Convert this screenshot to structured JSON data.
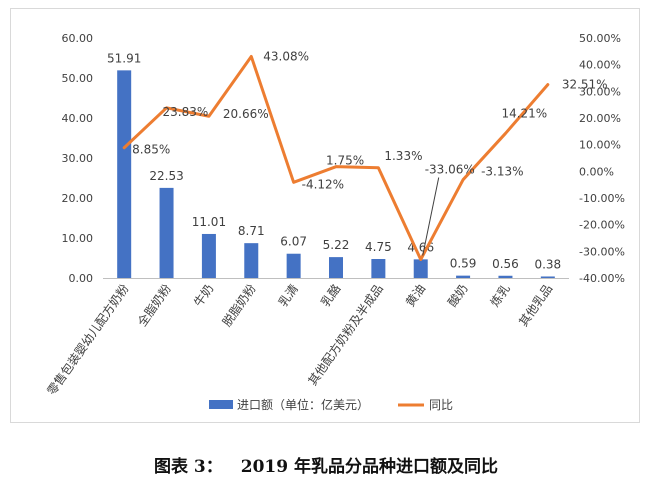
{
  "caption": {
    "label": "图表 3：",
    "text": "2019 年乳品分品种进口额及同比"
  },
  "colors": {
    "bar": "#4472c4",
    "line": "#ed7d31",
    "text": "#404040",
    "axis": "#bfbfbf"
  },
  "chart_data": {
    "type": "bar",
    "categories": [
      "零售包装婴幼儿配方奶粉",
      "全脂奶粉",
      "牛奶",
      "脱脂奶粉",
      "乳清",
      "乳酪",
      "其他配方奶粉及半成品",
      "黄油",
      "酸奶",
      "炼乳",
      "其他乳品"
    ],
    "series": [
      {
        "name": "进口额（单位：亿美元）",
        "type": "bar",
        "axis": "left",
        "values": [
          51.91,
          22.53,
          11.01,
          8.71,
          6.07,
          5.22,
          4.75,
          4.66,
          0.59,
          0.56,
          0.38
        ],
        "labels": [
          "51.91",
          "22.53",
          "11.01",
          "8.71",
          "6.07",
          "5.22",
          "4.75",
          "4.66",
          "0.59",
          "0.56",
          "0.38"
        ]
      },
      {
        "name": "同比",
        "type": "line",
        "axis": "right",
        "values": [
          8.85,
          23.83,
          20.66,
          43.08,
          -4.12,
          1.75,
          1.33,
          -33.06,
          -3.13,
          14.21,
          32.51
        ],
        "labels": [
          "8.85%",
          "23.83%",
          "20.66%",
          "43.08%",
          "-4.12%",
          "1.75%",
          "1.33%",
          "-33.06%",
          "-3.13%",
          "14.21%",
          "32.51%"
        ]
      }
    ],
    "y_left": {
      "ylim": [
        0,
        60
      ],
      "ticks": [
        "0.00",
        "10.00",
        "20.00",
        "30.00",
        "40.00",
        "50.00",
        "60.00"
      ]
    },
    "y_right": {
      "ylim": [
        -40,
        50
      ],
      "ticks": [
        "-40.00%",
        "-30.00%",
        "-20.00%",
        "-10.00%",
        "0.00%",
        "10.00%",
        "20.00%",
        "30.00%",
        "40.00%",
        "50.00%"
      ]
    },
    "grid": false,
    "legend": "bottom"
  }
}
